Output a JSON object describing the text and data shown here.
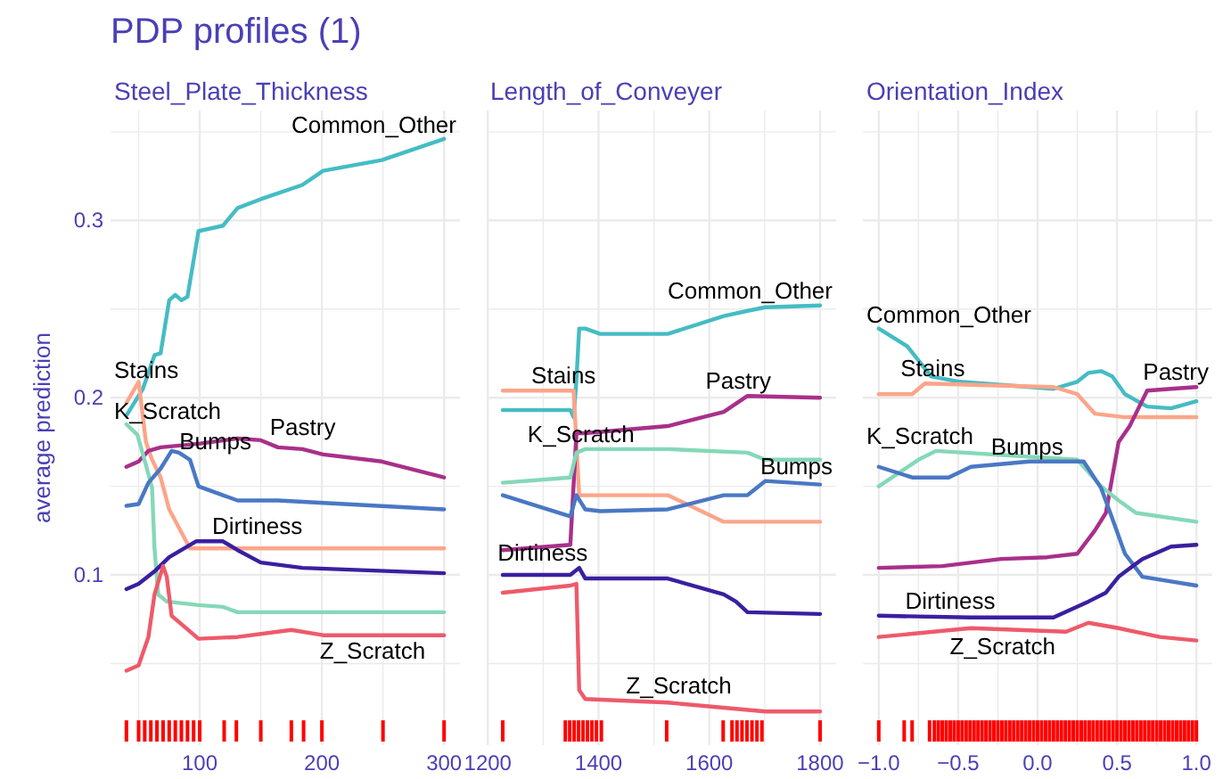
{
  "chart_data": [
    {
      "type": "line",
      "title": "PDP profiles (1)",
      "subtitle": "Steel_Plate_Thickness",
      "ylabel": "average prediction",
      "xlim": [
        27,
        313
      ],
      "xticks": [
        {
          "value": 50,
          "label": null
        },
        100,
        {
          "value": 150,
          "label": null
        },
        200,
        {
          "value": 250,
          "label": null
        },
        300
      ],
      "ylim": [
        0.004,
        0.362
      ],
      "yticks": [
        {
          "value": 0.05,
          "label": null
        },
        0.1,
        {
          "value": 0.15,
          "label": null
        },
        0.2,
        {
          "value": 0.25,
          "label": null
        },
        0.3,
        {
          "value": 0.35,
          "label": null
        }
      ],
      "grid": true,
      "series": [
        {
          "name": "Common_Other",
          "color": "#45bcc4",
          "x": [
            40,
            53.5,
            63,
            68,
            75,
            80,
            85,
            90,
            99,
            119,
            131,
            150,
            184,
            201,
            249,
            300
          ],
          "values": [
            0.19,
            0.205,
            0.224,
            0.225,
            0.255,
            0.258,
            0.255,
            0.257,
            0.294,
            0.297,
            0.307,
            0.312,
            0.32,
            0.328,
            0.334,
            0.346
          ]
        },
        {
          "name": "Stains",
          "color": "#fca58a",
          "x": [
            40,
            50,
            56,
            61,
            68,
            75,
            92,
            300
          ],
          "values": [
            0.197,
            0.209,
            0.175,
            0.165,
            0.155,
            0.137,
            0.115,
            0.115
          ]
        },
        {
          "name": "Pastry",
          "color": "#a8308a",
          "x": [
            40,
            50,
            58,
            68,
            99,
            131,
            150,
            164,
            184,
            201,
            249,
            300
          ],
          "values": [
            0.161,
            0.164,
            0.17,
            0.172,
            0.174,
            0.177,
            0.176,
            0.172,
            0.171,
            0.168,
            0.164,
            0.155
          ]
        },
        {
          "name": "K_Scratch",
          "color": "#85d8b8",
          "x": [
            40,
            49,
            56,
            61,
            63,
            66,
            73,
            99,
            119,
            131,
            300
          ],
          "values": [
            0.185,
            0.179,
            0.162,
            0.149,
            0.115,
            0.089,
            0.085,
            0.083,
            0.082,
            0.079,
            0.079
          ]
        },
        {
          "name": "Bumps",
          "color": "#4a78c4",
          "x": [
            40,
            50,
            58,
            68,
            77,
            83,
            92,
            99,
            119,
            131,
            164,
            300
          ],
          "values": [
            0.139,
            0.14,
            0.152,
            0.16,
            0.17,
            0.169,
            0.165,
            0.15,
            0.145,
            0.142,
            0.142,
            0.137
          ]
        },
        {
          "name": "Dirtiness",
          "color": "#3a1fa0",
          "x": [
            40,
            50,
            63,
            75,
            97,
            119,
            131,
            150,
            184,
            300
          ],
          "values": [
            0.092,
            0.095,
            0.102,
            0.11,
            0.119,
            0.119,
            0.114,
            0.107,
            0.104,
            0.101
          ]
        },
        {
          "name": "Z_Scratch",
          "color": "#ee5a6a",
          "x": [
            40,
            50,
            58,
            63,
            70,
            73,
            77,
            99,
            131,
            175,
            201,
            300
          ],
          "values": [
            0.046,
            0.049,
            0.065,
            0.089,
            0.105,
            0.099,
            0.077,
            0.064,
            0.065,
            0.069,
            0.066,
            0.066
          ]
        },
        {
          "type": "bar",
          "color": "#ff0000",
          "x": [
            40,
            50,
            55,
            60,
            65,
            70,
            75,
            80,
            85,
            90,
            95,
            100,
            120,
            130,
            150,
            175,
            185,
            200,
            250,
            300
          ],
          "base": [
            0.006,
            0.006,
            0.006,
            0.006,
            0.006,
            0.006,
            0.006,
            0.006,
            0.006,
            0.006,
            0.006,
            0.006,
            0.006,
            0.006,
            0.006,
            0.006,
            0.006,
            0.006,
            0.006,
            0.006
          ],
          "values": [
            0.012,
            0.012,
            0.012,
            0.012,
            0.012,
            0.012,
            0.012,
            0.012,
            0.012,
            0.012,
            0.012,
            0.012,
            0.012,
            0.012,
            0.012,
            0.012,
            0.012,
            0.012,
            0.012,
            0.012
          ]
        }
      ]
    },
    {
      "type": "line",
      "subtitle": "Length_of_Conveyer",
      "tick_labels": "x",
      "xlim": [
        1198,
        1829
      ],
      "xticks": [
        1200,
        {
          "value": 1300,
          "label": null
        },
        1400,
        {
          "value": 1500,
          "label": null
        },
        1600,
        {
          "value": 1700,
          "label": null
        },
        1800
      ],
      "ylim": [
        0.004,
        0.362
      ],
      "yticks": [
        {
          "value": 0.05,
          "label": null
        },
        0.1,
        {
          "value": 0.15,
          "label": null
        },
        0.2,
        {
          "value": 0.25,
          "label": null
        },
        0.3,
        {
          "value": 0.35,
          "label": null
        }
      ],
      "grid": true,
      "series": [
        {
          "name": "Common_Other",
          "color": "#45bcc4",
          "x": [
            1227,
            1349,
            1355,
            1360,
            1365,
            1376,
            1403,
            1525,
            1626,
            1669,
            1701,
            1800
          ],
          "values": [
            0.193,
            0.193,
            0.189,
            0.21,
            0.239,
            0.239,
            0.236,
            0.236,
            0.246,
            0.249,
            0.251,
            0.252
          ]
        },
        {
          "name": "Stains",
          "color": "#fca58a",
          "x": [
            1227,
            1355,
            1365,
            1525,
            1626,
            1800
          ],
          "values": [
            0.204,
            0.204,
            0.145,
            0.145,
            0.13,
            0.13
          ]
        },
        {
          "name": "Pastry",
          "color": "#a8308a",
          "x": [
            1227,
            1349,
            1360,
            1376,
            1525,
            1626,
            1669,
            1800
          ],
          "values": [
            0.114,
            0.117,
            0.18,
            0.18,
            0.184,
            0.192,
            0.201,
            0.2
          ]
        },
        {
          "name": "K_Scratch",
          "color": "#85d8b8",
          "x": [
            1227,
            1349,
            1360,
            1376,
            1525,
            1669,
            1701,
            1800
          ],
          "values": [
            0.152,
            0.155,
            0.169,
            0.171,
            0.171,
            0.169,
            0.165,
            0.165
          ]
        },
        {
          "name": "Bumps",
          "color": "#4a78c4",
          "x": [
            1227,
            1349,
            1360,
            1376,
            1403,
            1525,
            1626,
            1669,
            1701,
            1800
          ],
          "values": [
            0.145,
            0.133,
            0.145,
            0.137,
            0.136,
            0.137,
            0.145,
            0.145,
            0.153,
            0.151
          ]
        },
        {
          "name": "Dirtiness",
          "color": "#3a1fa0",
          "x": [
            1227,
            1349,
            1365,
            1376,
            1525,
            1626,
            1648,
            1669,
            1800
          ],
          "values": [
            0.1,
            0.1,
            0.104,
            0.098,
            0.098,
            0.089,
            0.085,
            0.079,
            0.078
          ]
        },
        {
          "name": "Z_Scratch",
          "color": "#ee5a6a",
          "x": [
            1227,
            1349,
            1360,
            1365,
            1376,
            1525,
            1701,
            1800
          ],
          "values": [
            0.09,
            0.094,
            0.095,
            0.035,
            0.03,
            0.028,
            0.023,
            0.023
          ]
        },
        {
          "type": "bar",
          "color": "#ff0000",
          "x": [
            1227,
            1340,
            1348,
            1356,
            1364,
            1372,
            1380,
            1388,
            1396,
            1405,
            1523,
            1625,
            1641,
            1650,
            1659,
            1668,
            1677,
            1686,
            1695,
            1800
          ],
          "base": [
            0.006,
            0.006,
            0.006,
            0.006,
            0.006,
            0.006,
            0.006,
            0.006,
            0.006,
            0.006,
            0.006,
            0.006,
            0.006,
            0.006,
            0.006,
            0.006,
            0.006,
            0.006,
            0.006,
            0.006
          ],
          "values": [
            0.012,
            0.012,
            0.012,
            0.012,
            0.012,
            0.012,
            0.012,
            0.012,
            0.012,
            0.012,
            0.012,
            0.012,
            0.012,
            0.012,
            0.012,
            0.012,
            0.012,
            0.012,
            0.012,
            0.012
          ]
        }
      ]
    },
    {
      "type": "line",
      "subtitle": "Orientation_Index",
      "tick_labels": "x",
      "xlim": [
        -1.1,
        1.1
      ],
      "xticks": [
        {
          "value": -1,
          "label": "−1.0"
        },
        {
          "value": -0.75,
          "label": null
        },
        {
          "value": -0.5,
          "label": "−0.5"
        },
        {
          "value": -0.25,
          "label": null
        },
        {
          "value": 0,
          "label": "0.0"
        },
        {
          "value": 0.25,
          "label": null
        },
        {
          "value": 0.5,
          "label": "0.5"
        },
        {
          "value": 0.75,
          "label": null
        },
        {
          "value": 1,
          "label": "1.0"
        }
      ],
      "ylim": [
        0.004,
        0.362
      ],
      "yticks": [
        {
          "value": 0.05,
          "label": null
        },
        0.1,
        {
          "value": 0.15,
          "label": null
        },
        0.2,
        {
          "value": 0.25,
          "label": null
        },
        0.3,
        {
          "value": 0.35,
          "label": null
        }
      ],
      "grid": true,
      "series": [
        {
          "name": "Common_Other",
          "color": "#45bcc4",
          "x": [
            -1,
            -0.82,
            -0.67,
            -0.49,
            0.1,
            0.25,
            0.32,
            0.4,
            0.47,
            0.55,
            0.69,
            0.84,
            1
          ],
          "values": [
            0.239,
            0.229,
            0.212,
            0.209,
            0.205,
            0.209,
            0.214,
            0.215,
            0.212,
            0.202,
            0.195,
            0.194,
            0.198
          ]
        },
        {
          "name": "Stains",
          "color": "#fca58a",
          "x": [
            -1,
            -0.79,
            -0.71,
            0.1,
            0.25,
            0.36,
            0.55,
            1
          ],
          "values": [
            0.202,
            0.202,
            0.208,
            0.206,
            0.202,
            0.191,
            0.189,
            0.189
          ]
        },
        {
          "name": "Pastry",
          "color": "#a8308a",
          "x": [
            -1,
            -0.6,
            -0.23,
            0.06,
            0.25,
            0.36,
            0.43,
            0.51,
            0.58,
            0.69,
            0.84,
            1
          ],
          "values": [
            0.104,
            0.105,
            0.109,
            0.11,
            0.112,
            0.125,
            0.135,
            0.175,
            0.184,
            0.204,
            0.205,
            0.206
          ]
        },
        {
          "name": "K_Scratch",
          "color": "#85d8b8",
          "x": [
            -1,
            -0.75,
            -0.64,
            0.25,
            0.4,
            0.51,
            0.62,
            1
          ],
          "values": [
            0.15,
            0.165,
            0.17,
            0.165,
            0.15,
            0.142,
            0.135,
            0.13
          ]
        },
        {
          "name": "Bumps",
          "color": "#4a78c4",
          "x": [
            -1,
            -0.79,
            -0.56,
            -0.42,
            -0.05,
            0.29,
            0.4,
            0.47,
            0.55,
            0.66,
            1
          ],
          "values": [
            0.161,
            0.155,
            0.155,
            0.161,
            0.164,
            0.164,
            0.149,
            0.132,
            0.112,
            0.099,
            0.094
          ]
        },
        {
          "name": "Dirtiness",
          "color": "#3a1fa0",
          "x": [
            -1,
            -0.42,
            0.1,
            0.32,
            0.43,
            0.51,
            0.66,
            0.84,
            1
          ],
          "values": [
            0.077,
            0.076,
            0.076,
            0.085,
            0.09,
            0.099,
            0.109,
            0.116,
            0.117
          ]
        },
        {
          "name": "Z_Scratch",
          "color": "#ee5a6a",
          "x": [
            -1,
            -0.42,
            0.18,
            0.32,
            0.51,
            0.77,
            1
          ],
          "values": [
            0.065,
            0.07,
            0.068,
            0.073,
            0.07,
            0.065,
            0.063
          ]
        },
        {
          "type": "bar",
          "color": "#ff0000",
          "x": [
            -1,
            -0.84,
            -0.79,
            -0.68,
            -0.65,
            -0.625,
            -0.6,
            -0.575,
            -0.55,
            -0.525,
            -0.5,
            -0.475,
            -0.45,
            -0.425,
            -0.4,
            -0.375,
            -0.35,
            -0.325,
            -0.3,
            -0.275,
            -0.25,
            -0.225,
            -0.2,
            -0.175,
            -0.15,
            -0.125,
            -0.1,
            -0.075,
            -0.05,
            -0.025,
            0,
            0.025,
            0.05,
            0.075,
            0.1,
            0.125,
            0.15,
            0.175,
            0.2,
            0.225,
            0.25,
            0.275,
            0.3,
            0.325,
            0.35,
            0.375,
            0.4,
            0.425,
            0.45,
            0.475,
            0.5,
            0.525,
            0.55,
            0.575,
            0.6,
            0.625,
            0.65,
            0.675,
            0.7,
            0.725,
            0.75,
            0.775,
            0.8,
            0.825,
            0.85,
            0.875,
            0.9,
            0.925,
            0.95,
            0.975,
            1
          ],
          "base": [
            0.006,
            0.006,
            0.006,
            0.006,
            0.006,
            0.006,
            0.006,
            0.006,
            0.006,
            0.006,
            0.006,
            0.006,
            0.006,
            0.006,
            0.006,
            0.006,
            0.006,
            0.006,
            0.006,
            0.006,
            0.006,
            0.006,
            0.006,
            0.006,
            0.006,
            0.006,
            0.006,
            0.006,
            0.006,
            0.006,
            0.006,
            0.006,
            0.006,
            0.006,
            0.006,
            0.006,
            0.006,
            0.006,
            0.006,
            0.006,
            0.006,
            0.006,
            0.006,
            0.006,
            0.006,
            0.006,
            0.006,
            0.006,
            0.006,
            0.006,
            0.006,
            0.006,
            0.006,
            0.006,
            0.006,
            0.006,
            0.006,
            0.006,
            0.006,
            0.006,
            0.006,
            0.006,
            0.006,
            0.006,
            0.006,
            0.006,
            0.006,
            0.006,
            0.006,
            0.006,
            0.006
          ],
          "values": [
            0.012,
            0.012,
            0.012,
            0.012,
            0.012,
            0.012,
            0.012,
            0.012,
            0.012,
            0.012,
            0.012,
            0.012,
            0.012,
            0.012,
            0.012,
            0.012,
            0.012,
            0.012,
            0.012,
            0.012,
            0.012,
            0.012,
            0.012,
            0.012,
            0.012,
            0.012,
            0.012,
            0.012,
            0.012,
            0.012,
            0.012,
            0.012,
            0.012,
            0.012,
            0.012,
            0.012,
            0.012,
            0.012,
            0.012,
            0.012,
            0.012,
            0.012,
            0.012,
            0.012,
            0.012,
            0.012,
            0.012,
            0.012,
            0.012,
            0.012,
            0.012,
            0.012,
            0.012,
            0.012,
            0.012,
            0.012,
            0.012,
            0.012,
            0.012,
            0.012,
            0.012,
            0.012,
            0.012,
            0.012,
            0.012,
            0.012,
            0.012,
            0.012,
            0.012,
            0.012,
            0.012
          ]
        }
      ]
    }
  ]
}
